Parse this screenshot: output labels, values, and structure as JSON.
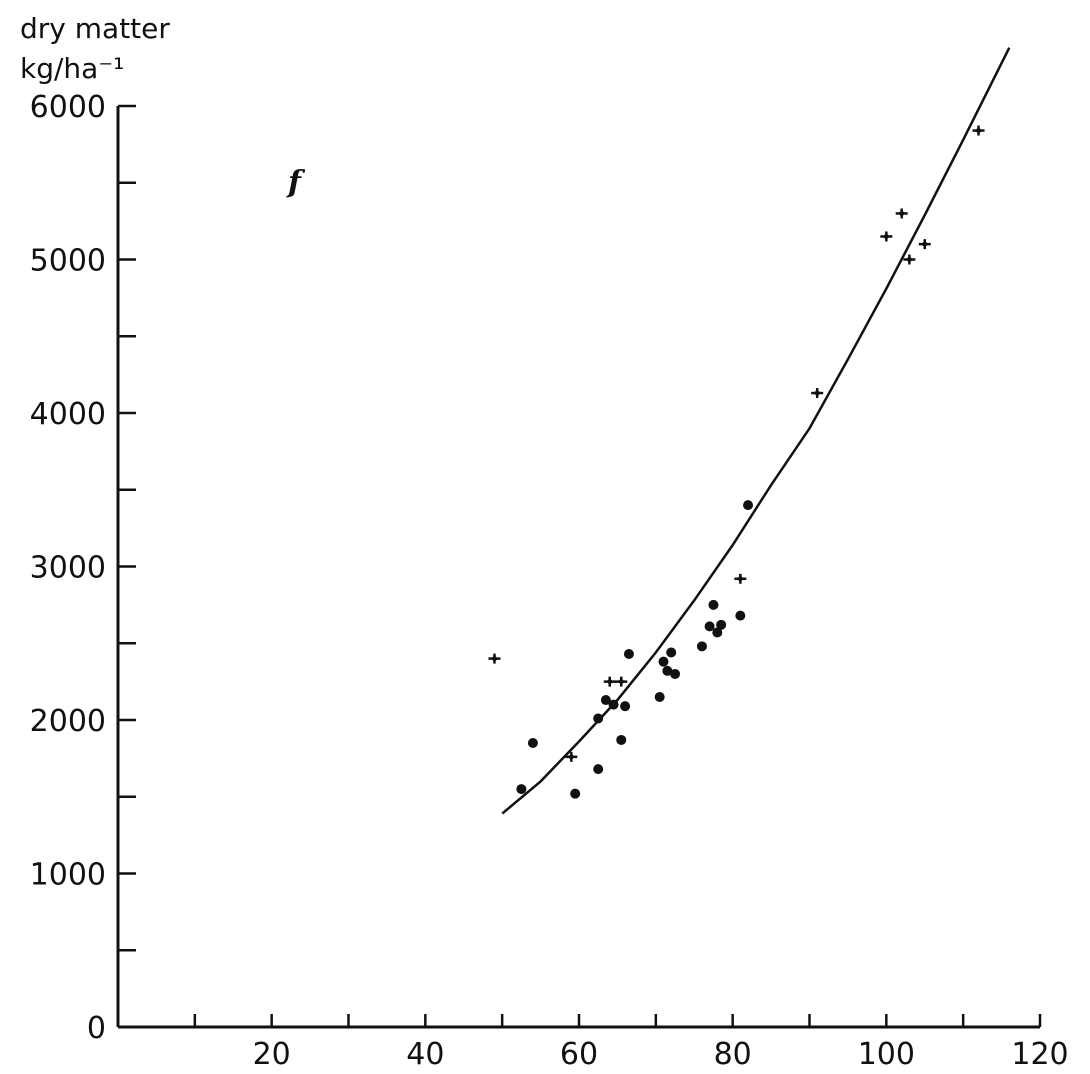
{
  "chart_data": {
    "type": "scatter",
    "title": "",
    "panel_label": "f",
    "ylabel_lines": [
      "dry matter",
      "kg/ha⁻¹"
    ],
    "xlabel": "",
    "xlim": [
      0,
      120
    ],
    "ylim": [
      0,
      6000
    ],
    "x_ticks_major": [
      20,
      40,
      60,
      80,
      100,
      120
    ],
    "x_ticks_minor": [
      10,
      30,
      50,
      70,
      90,
      110
    ],
    "y_ticks_major": [
      0,
      1000,
      2000,
      3000,
      4000,
      5000,
      6000
    ],
    "y_ticks_minor": [
      500,
      1500,
      2500,
      3500,
      4500,
      5500
    ],
    "grid": false,
    "series": [
      {
        "marker": "dot",
        "points": [
          [
            52.5,
            1550
          ],
          [
            54,
            1850
          ],
          [
            59.5,
            1520
          ],
          [
            62.5,
            1680
          ],
          [
            62.5,
            2010
          ],
          [
            63.5,
            2130
          ],
          [
            64.5,
            2100
          ],
          [
            65.5,
            1870
          ],
          [
            66,
            2090
          ],
          [
            66.5,
            2430
          ],
          [
            70.5,
            2150
          ],
          [
            71,
            2380
          ],
          [
            71.5,
            2320
          ],
          [
            72,
            2440
          ],
          [
            72.5,
            2300
          ],
          [
            76,
            2480
          ],
          [
            77,
            2610
          ],
          [
            77.5,
            2750
          ],
          [
            78,
            2570
          ],
          [
            78.5,
            2620
          ],
          [
            81,
            2680
          ],
          [
            82,
            3400
          ]
        ]
      },
      {
        "marker": "plus",
        "points": [
          [
            49,
            2400
          ],
          [
            59,
            1760
          ],
          [
            64,
            2250
          ],
          [
            65.5,
            2250
          ],
          [
            81,
            2920
          ],
          [
            91,
            4130
          ],
          [
            100,
            5150
          ],
          [
            102,
            5300
          ],
          [
            103,
            5000
          ],
          [
            105,
            5100
          ],
          [
            112,
            5840
          ]
        ]
      }
    ],
    "fitted_curve": {
      "style": "line",
      "points": [
        [
          50,
          1390
        ],
        [
          55,
          1600
        ],
        [
          60,
          1860
        ],
        [
          65,
          2130
        ],
        [
          70,
          2440
        ],
        [
          75,
          2780
        ],
        [
          80,
          3140
        ],
        [
          85,
          3530
        ],
        [
          90,
          3900
        ],
        [
          95,
          4350
        ],
        [
          100,
          4810
        ],
        [
          105,
          5290
        ],
        [
          110,
          5780
        ],
        [
          116,
          6380
        ]
      ]
    }
  }
}
